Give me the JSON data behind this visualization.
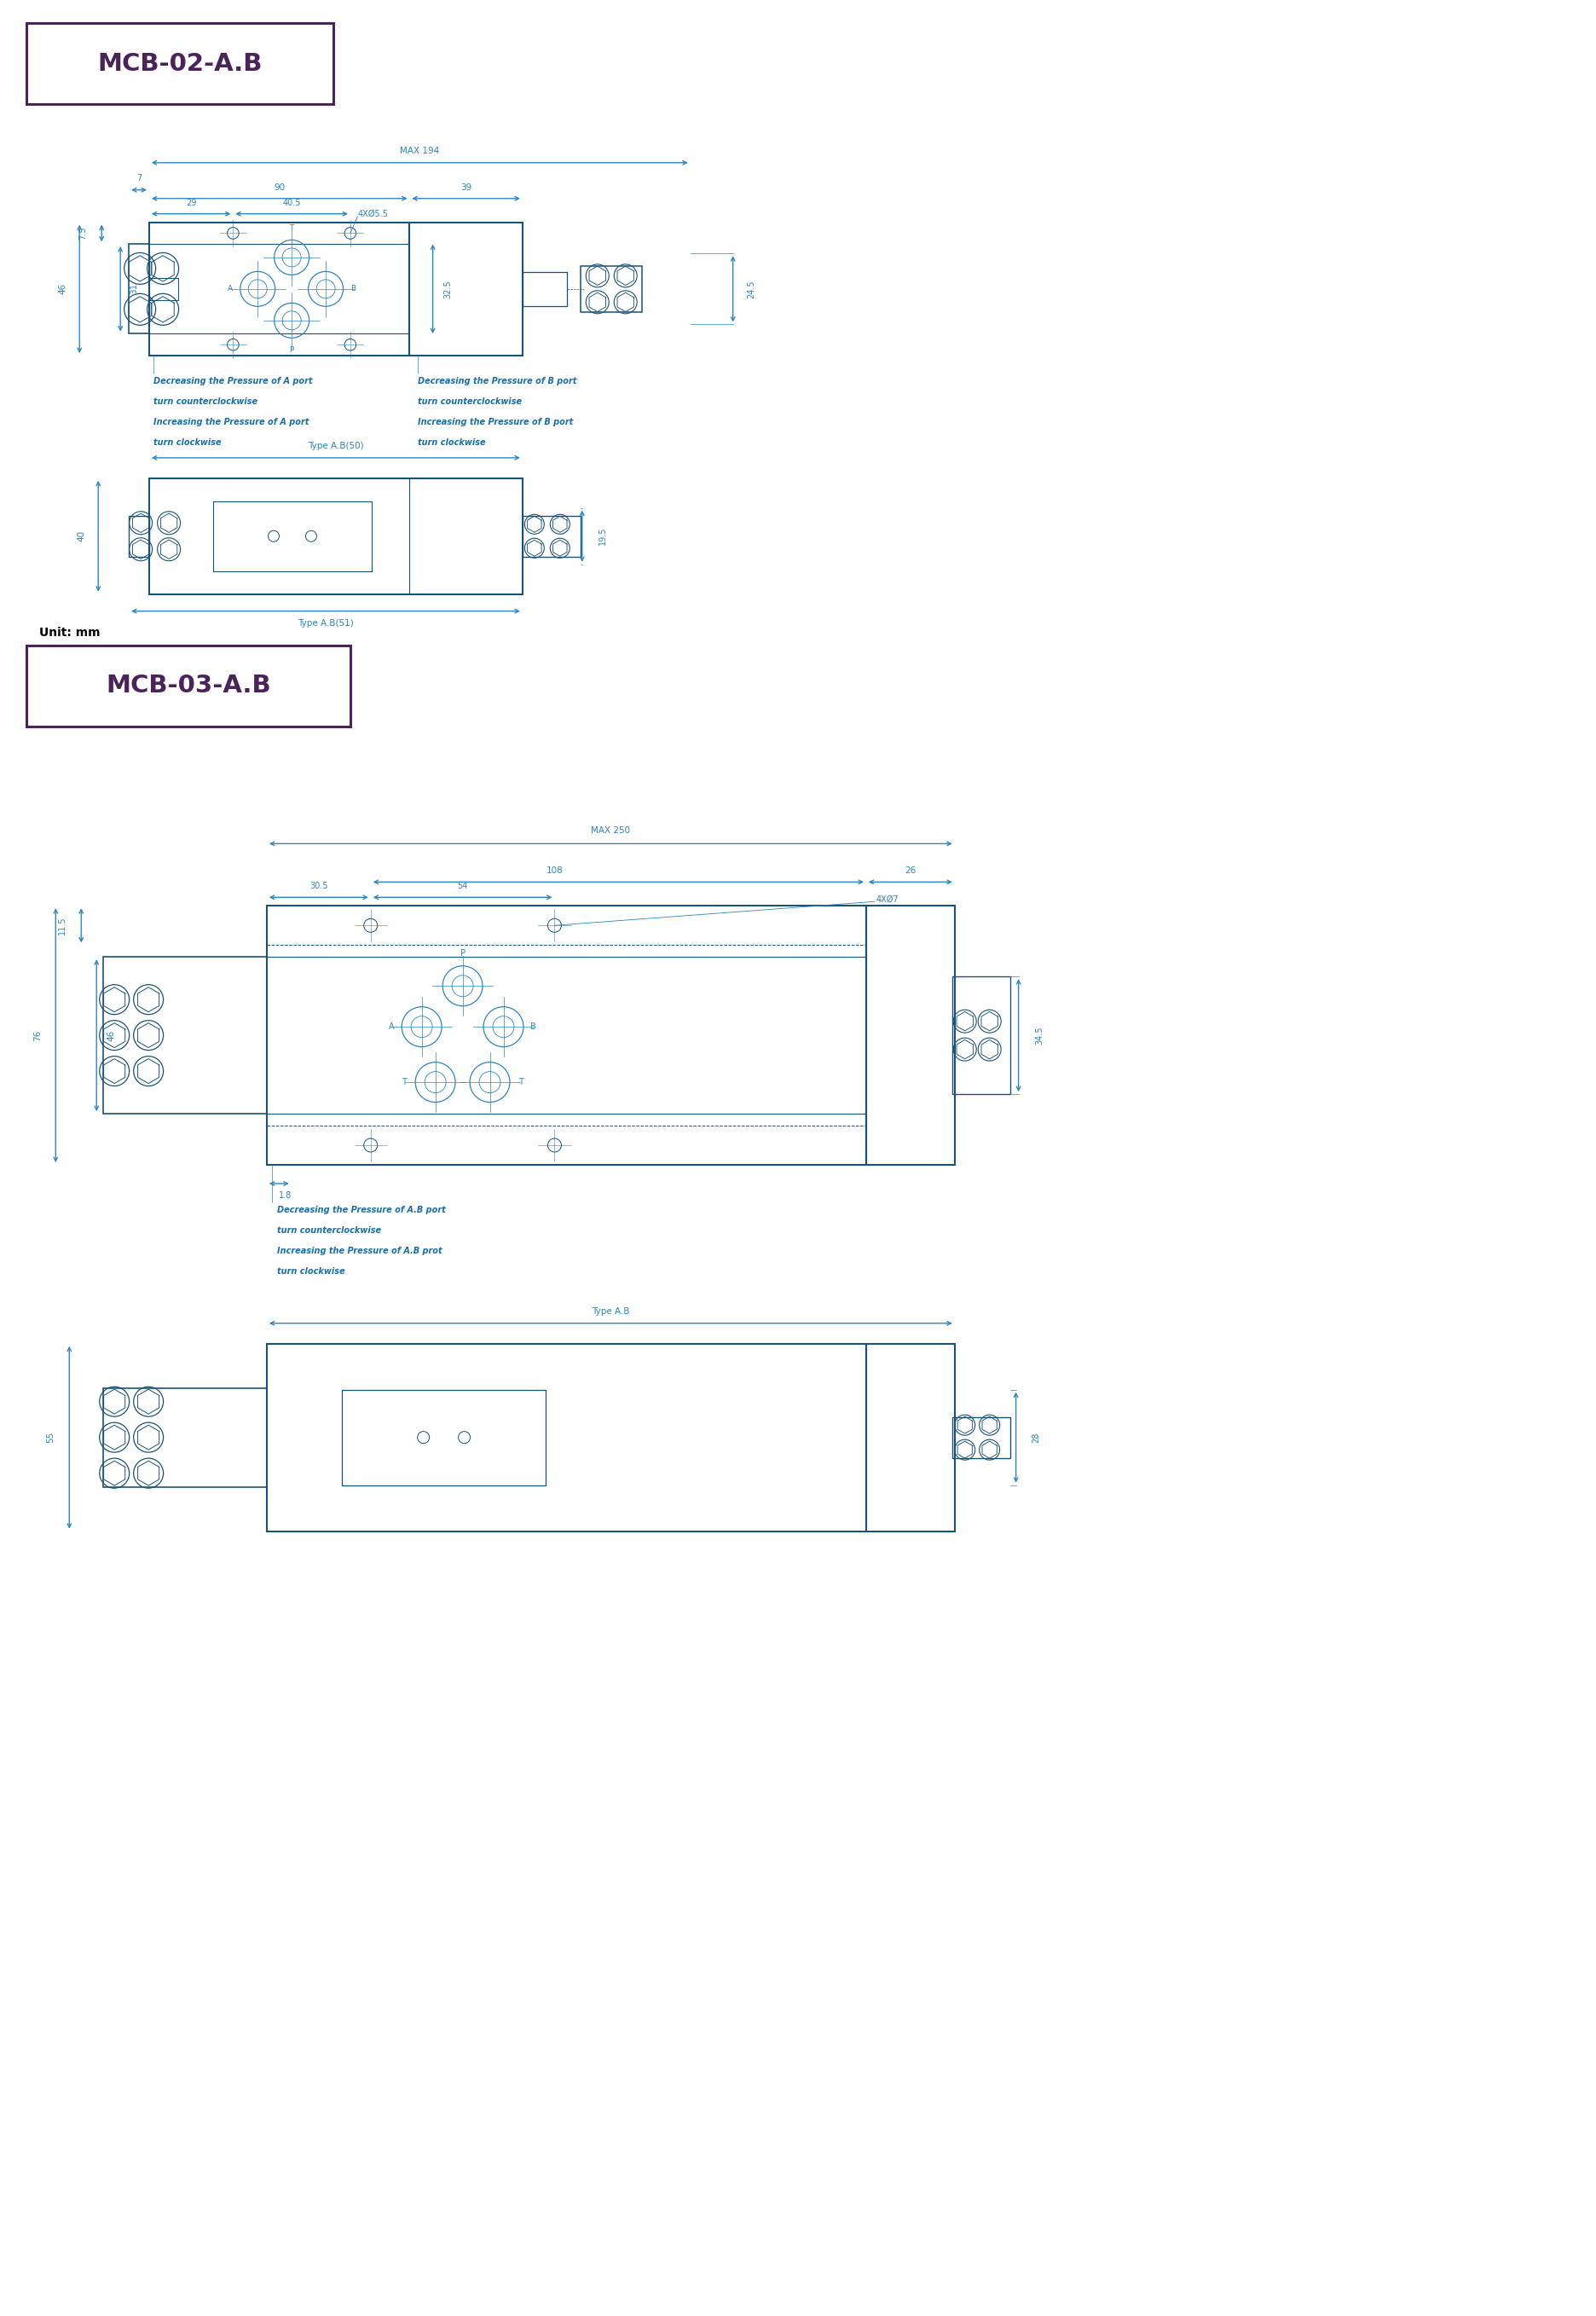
{
  "bg_color": "#ffffff",
  "line_color": "#1a5276",
  "dim_color": "#2e86c1",
  "title_color": "#4a235a",
  "text_color": "#1a6fa8",
  "title1": "MCB-02-A.B",
  "title2": "MCB-03-A.B",
  "unit_text": "Unit: mm",
  "section1_dims": {
    "max194": "MAX 194",
    "d7": "7",
    "d90": "90",
    "d39": "39",
    "d29": "29",
    "d40_5": "40.5",
    "d4xo5_5": "4XØ5.5",
    "d7_5": "7.5",
    "d46": "46",
    "d31": "31",
    "d24_5": "24.5",
    "d32_5": "32.5",
    "typeAB50": "Type A.B(50)",
    "typeAB51": "Type A.B(51)",
    "d40": "40",
    "d19_5": "19.5",
    "noteA1": "Decreasing the Pressure of A port",
    "noteA2": "turn counterclockwise",
    "noteA3": "Increasing the Pressure of A port",
    "noteA4": "turn clockwise",
    "noteB1": "Decreasing the Pressure of B port",
    "noteB2": "turn counterclockwise",
    "noteB3": "Increasing the Pressure of B port",
    "noteB4": "turn clockwise"
  },
  "section2_dims": {
    "max250": "MAX 250",
    "d108": "108",
    "d26": "26",
    "d30_5": "30.5",
    "d54": "54",
    "d4xo7": "4XØ7",
    "d11_5": "11.5",
    "d76": "76",
    "d46": "46",
    "d34_5": "34.5",
    "d1_8": "1.8",
    "typeAB": "Type A.B",
    "d55": "55",
    "d28": "28",
    "noteAB1": "Decreasing the Pressure of A.B port",
    "noteAB2": "turn counterclockwise",
    "noteAB3": "Increasing the Pressure of A.B prot",
    "noteAB4": "turn clockwise"
  }
}
